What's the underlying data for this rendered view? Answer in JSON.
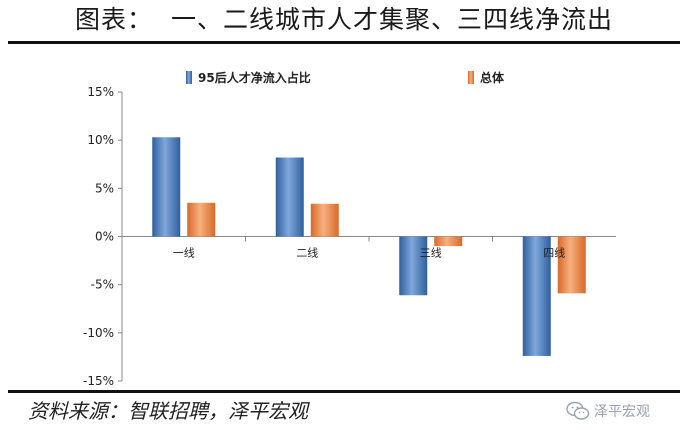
{
  "title": "图表：  一、二线城市人才集聚、三四线净流出",
  "source": "资料来源：智联招聘，泽平宏观",
  "watermark": "泽平宏观",
  "watermark_icon": "wechat-icon",
  "colors": {
    "series_young": "#4a7fc1",
    "series_total": "#ec8a45",
    "axis": "#888888"
  },
  "chart_data": {
    "type": "bar",
    "categories": [
      "一线",
      "二线",
      "三线",
      "四线"
    ],
    "series": [
      {
        "name": "95后人才净流入占比",
        "values": [
          10.3,
          8.2,
          -6.1,
          -12.4
        ]
      },
      {
        "name": "总体",
        "values": [
          3.5,
          3.4,
          -1.0,
          -5.9
        ]
      }
    ],
    "ylim": [
      -15,
      15
    ],
    "yticks": [
      "15%",
      "10%",
      "5%",
      "0%",
      "-5%",
      "-10%",
      "-15%"
    ],
    "legend_position": "top",
    "grid": false
  }
}
